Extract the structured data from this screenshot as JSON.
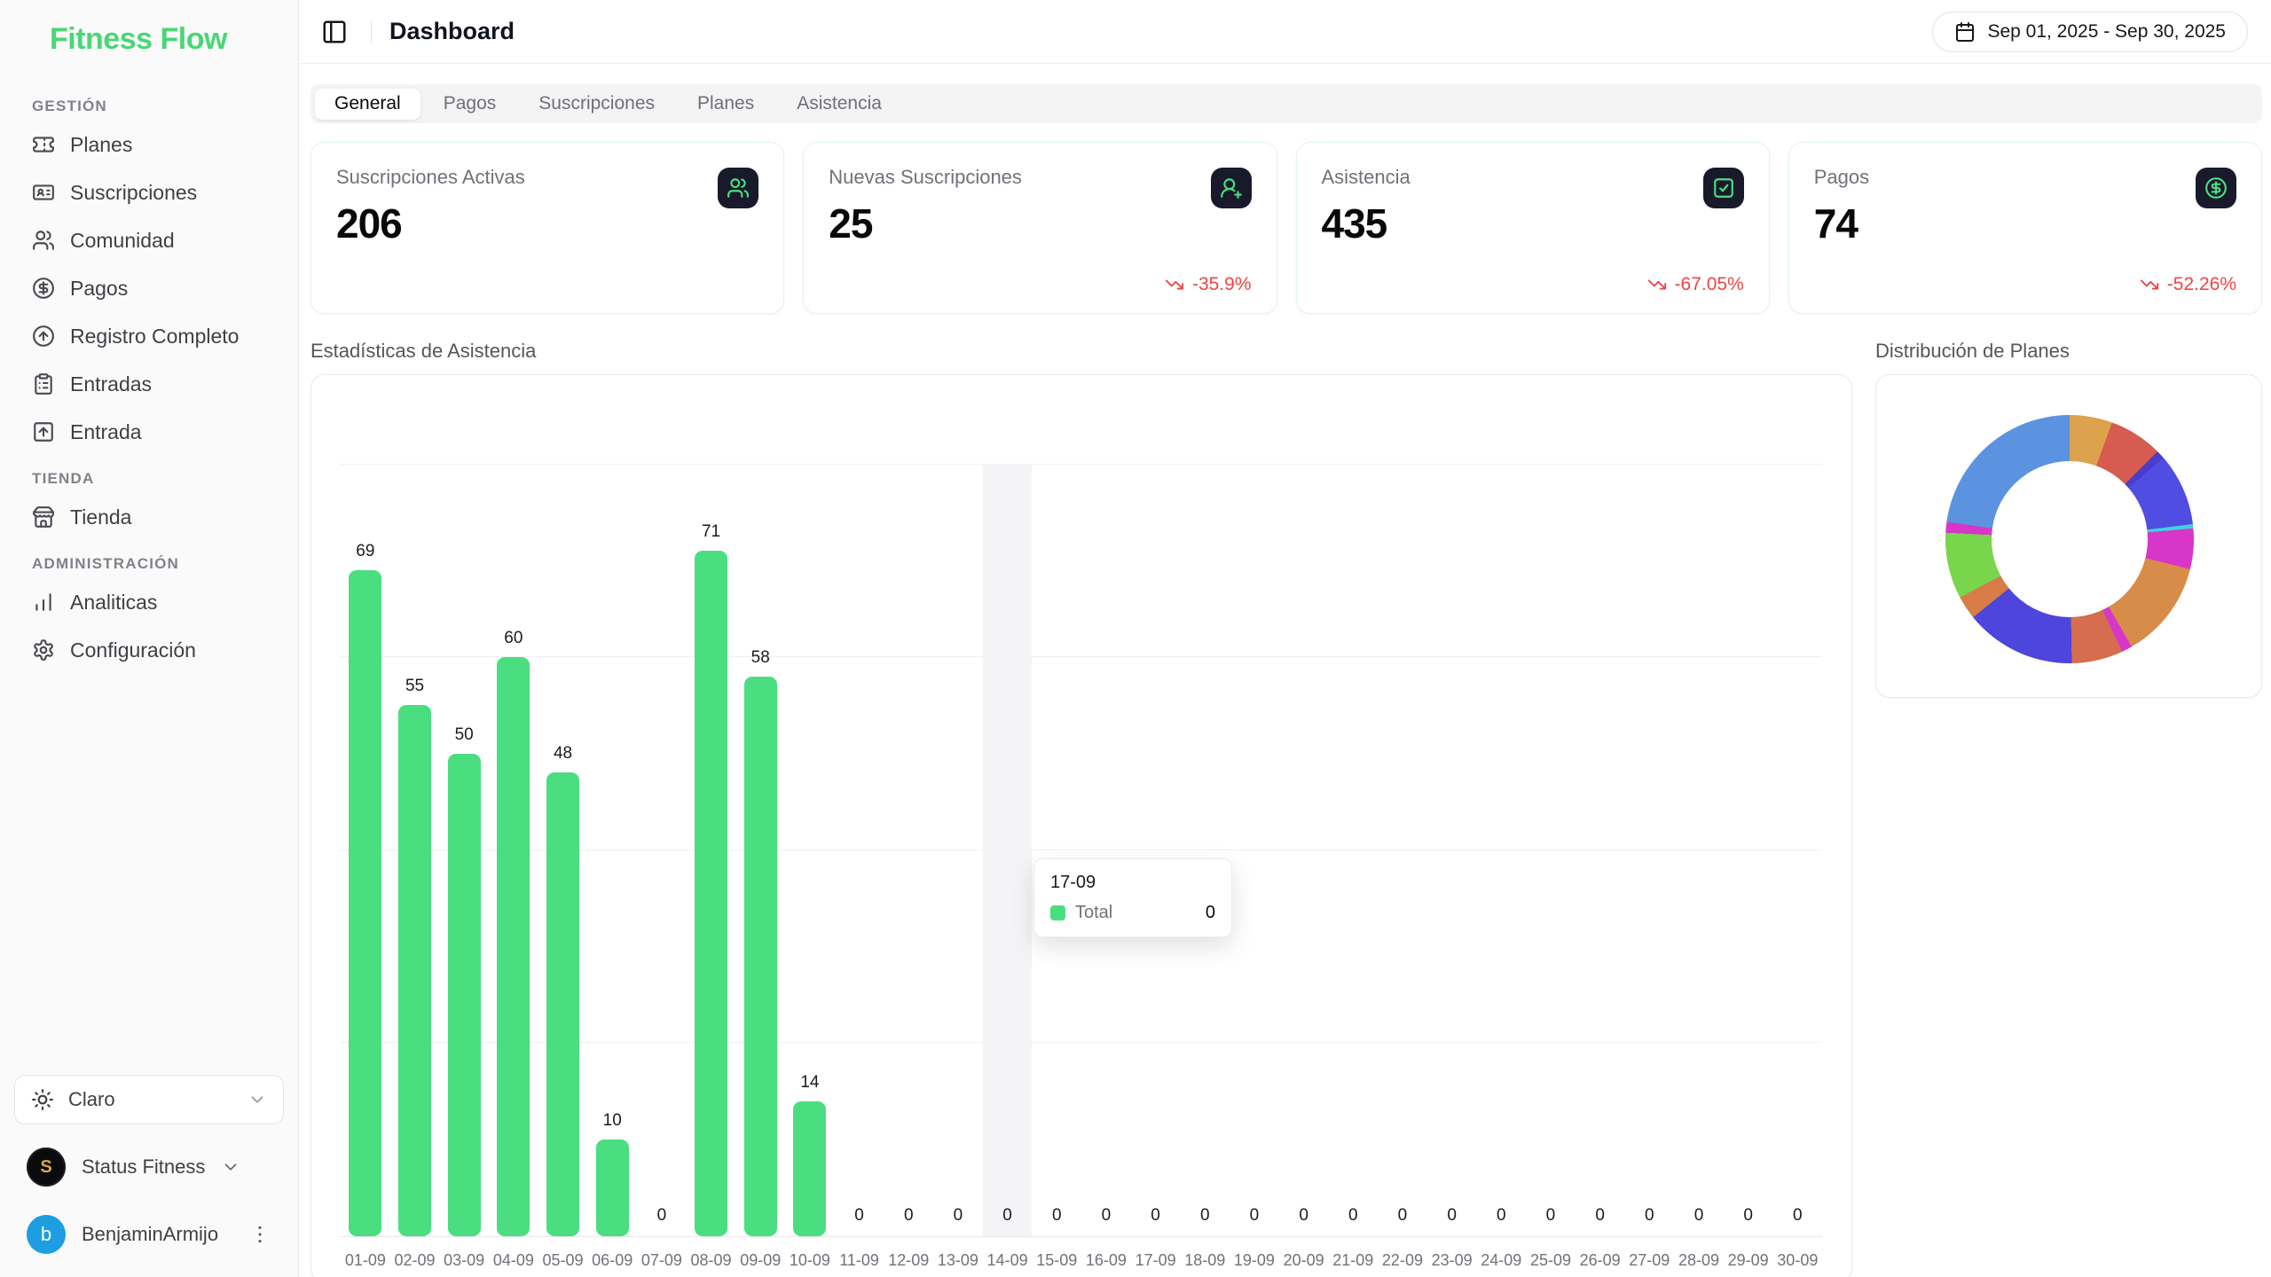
{
  "app": {
    "logo": "Fitness Flow"
  },
  "sidebar": {
    "sections": [
      {
        "label": "GESTIÓN",
        "items": [
          {
            "label": "Planes",
            "icon": "ticket-icon"
          },
          {
            "label": "Suscripciones",
            "icon": "id-card-icon"
          },
          {
            "label": "Comunidad",
            "icon": "users-icon"
          },
          {
            "label": "Pagos",
            "icon": "circle-dollar-icon"
          },
          {
            "label": "Registro Completo",
            "icon": "circle-arrow-up-icon"
          },
          {
            "label": "Entradas",
            "icon": "clipboard-list-icon"
          },
          {
            "label": "Entrada",
            "icon": "square-arrow-up-icon"
          }
        ]
      },
      {
        "label": "TIENDA",
        "items": [
          {
            "label": "Tienda",
            "icon": "store-icon"
          }
        ]
      },
      {
        "label": "ADMINISTRACIÓN",
        "items": [
          {
            "label": "Analiticas",
            "icon": "bar-chart-icon"
          },
          {
            "label": "Configuración",
            "icon": "gear-icon"
          }
        ]
      }
    ],
    "theme_selector": {
      "value": "Claro"
    },
    "org": {
      "name": "Status Fitness",
      "avatar_initial": "S"
    },
    "user": {
      "name": "BenjaminArmijo",
      "avatar_initial": "b"
    }
  },
  "header": {
    "title": "Dashboard",
    "date_range": "Sep 01, 2025 - Sep 30, 2025"
  },
  "tabs": [
    {
      "label": "General",
      "active": true
    },
    {
      "label": "Pagos",
      "active": false
    },
    {
      "label": "Suscripciones",
      "active": false
    },
    {
      "label": "Planes",
      "active": false
    },
    {
      "label": "Asistencia",
      "active": false
    }
  ],
  "stat_cards": [
    {
      "label": "Suscripciones Activas",
      "value": "206",
      "icon": "users-icon",
      "trend": null
    },
    {
      "label": "Nuevas Suscripciones",
      "value": "25",
      "icon": "user-plus-icon",
      "trend": "-35.9%"
    },
    {
      "label": "Asistencia",
      "value": "435",
      "icon": "square-check-icon",
      "trend": "-67.05%"
    },
    {
      "label": "Pagos",
      "value": "74",
      "icon": "circle-dollar-icon",
      "trend": "-52.26%"
    }
  ],
  "sections": {
    "attendance_title": "Estadísticas de Asistencia",
    "plans_title": "Distribución de Planes"
  },
  "tooltip": {
    "title": "17-09",
    "series": "Total",
    "value": "0"
  },
  "colors": {
    "accent_green": "#4ade80",
    "logo_green": "#4bd676",
    "trend_red": "#ef4444",
    "icon_tile_bg": "#181a2c",
    "user_avatar_blue": "#1d9ee2",
    "highlight_band": "#f4f4f6"
  },
  "chart_data": [
    {
      "type": "bar",
      "title": "Estadísticas de Asistencia",
      "series_name": "Total",
      "categories": [
        "01-09",
        "02-09",
        "03-09",
        "04-09",
        "05-09",
        "06-09",
        "07-09",
        "08-09",
        "09-09",
        "10-09",
        "11-09",
        "12-09",
        "13-09",
        "14-09",
        "15-09",
        "16-09",
        "17-09",
        "18-09",
        "19-09",
        "20-09",
        "21-09",
        "22-09",
        "23-09",
        "24-09",
        "25-09",
        "26-09",
        "27-09",
        "28-09",
        "29-09",
        "30-09"
      ],
      "values": [
        69,
        55,
        50,
        60,
        48,
        10,
        0,
        71,
        58,
        14,
        0,
        0,
        0,
        0,
        0,
        0,
        0,
        0,
        0,
        0,
        0,
        0,
        0,
        0,
        0,
        0,
        0,
        0,
        0,
        0
      ],
      "ylim": [
        0,
        80
      ],
      "gridline_values": [
        20,
        40,
        60,
        80
      ],
      "bar_color": "#4ade80",
      "highlighted_category": "14-09",
      "legend": "off",
      "data_labels": "on"
    },
    {
      "type": "pie",
      "title": "Distribución de Planes",
      "donut": true,
      "note": "segment sweep angles estimated from pixels, clockwise from 12 o'clock; no labels shown in UI",
      "segments": [
        {
          "color": "#dca24d",
          "sweep_deg": 20,
          "pct": 5.6
        },
        {
          "color": "#d65b50",
          "sweep_deg": 25,
          "pct": 6.9
        },
        {
          "color": "#4a3ccc",
          "sweep_deg": 4,
          "pct": 1.1
        },
        {
          "color": "#4f4de2",
          "sweep_deg": 34,
          "pct": 9.4
        },
        {
          "color": "#3fd2de",
          "sweep_deg": 2,
          "pct": 0.6
        },
        {
          "color": "#d836c9",
          "sweep_deg": 19,
          "pct": 5.3
        },
        {
          "color": "#d88c49",
          "sweep_deg": 46,
          "pct": 12.8
        },
        {
          "color": "#d836c9",
          "sweep_deg": 5,
          "pct": 1.4
        },
        {
          "color": "#d56d4e",
          "sweep_deg": 24,
          "pct": 6.7
        },
        {
          "color": "#4d45dc",
          "sweep_deg": 52,
          "pct": 14.4
        },
        {
          "color": "#d87c48",
          "sweep_deg": 11,
          "pct": 3.1
        },
        {
          "color": "#79d54c",
          "sweep_deg": 31,
          "pct": 8.6
        },
        {
          "color": "#d836c9",
          "sweep_deg": 5,
          "pct": 1.4
        },
        {
          "color": "#5b93e0",
          "sweep_deg": 82,
          "pct": 22.8
        }
      ]
    }
  ]
}
